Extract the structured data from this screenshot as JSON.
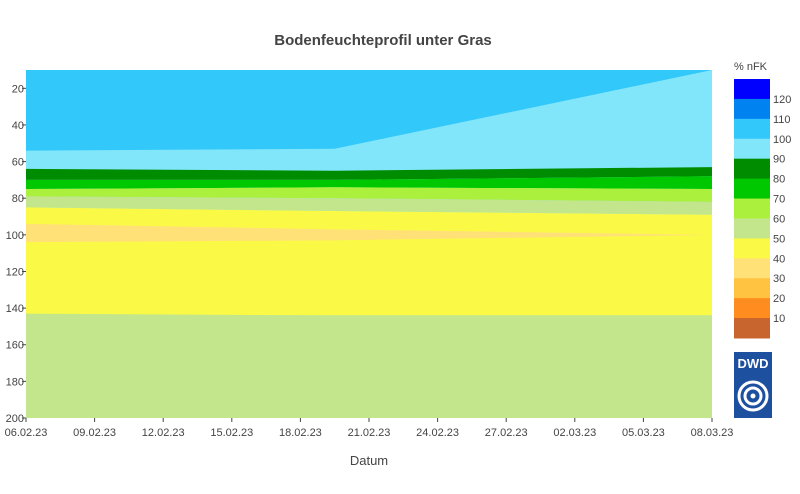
{
  "chart_data": {
    "type": "heatmap",
    "title": "Bodenfeuchteprofil unter Gras",
    "xlabel": "Datum",
    "ylabel": "",
    "x_ticks": [
      "06.02.23",
      "09.02.23",
      "12.02.23",
      "15.02.23",
      "18.02.23",
      "21.02.23",
      "24.02.23",
      "27.02.23",
      "02.03.23",
      "05.03.23",
      "08.03.23"
    ],
    "y_ticks": [
      20,
      40,
      60,
      80,
      100,
      120,
      140,
      160,
      180,
      200
    ],
    "ylim": [
      200,
      10
    ],
    "xlim_days": [
      0,
      30
    ],
    "colorbar": {
      "title": "% nFK",
      "tick_labels": [
        10,
        20,
        30,
        40,
        50,
        60,
        70,
        80,
        90,
        100,
        110,
        120
      ],
      "colors": [
        "#c8642d",
        "#ff8c1e",
        "#ffc341",
        "#ffe178",
        "#fafa46",
        "#c3e68c",
        "#aaf03c",
        "#00c800",
        "#008c00",
        "#82e6fa",
        "#32c8fa",
        "#0082f0",
        "#0000ff"
      ]
    },
    "depth_profile_days": [
      0,
      13.5,
      30
    ],
    "contour_regions": [
      {
        "level": "90-100",
        "color": "#82e6fa",
        "top": [
          10,
          10,
          10
        ],
        "bottom": [
          65,
          65,
          65
        ]
      },
      {
        "level": "100-110",
        "color": "#32c8fa",
        "top": [
          10,
          10,
          10
        ],
        "bottom": [
          54,
          53,
          10
        ]
      },
      {
        "level": "80-90",
        "color": "#008c00",
        "top": [
          64,
          65,
          63
        ],
        "bottom": [
          70,
          70,
          68
        ]
      },
      {
        "level": "70-80",
        "color": "#00c800",
        "top": [
          70,
          70,
          68
        ],
        "bottom": [
          75,
          74,
          75
        ]
      },
      {
        "level": "60-70",
        "color": "#aaf03c",
        "top": [
          75,
          74,
          75
        ],
        "bottom": [
          79,
          80,
          82
        ]
      },
      {
        "level": "50-60",
        "color": "#c3e68c",
        "top": [
          79,
          80,
          82
        ],
        "bottom": [
          85,
          87,
          89
        ]
      },
      {
        "level": "40-50",
        "color": "#fafa46",
        "top": [
          85,
          87,
          89
        ],
        "bottom": [
          144,
          144,
          144
        ]
      },
      {
        "level": "30-40",
        "color": "#ffe178",
        "top": [
          94,
          97,
          100
        ],
        "bottom": [
          104,
          103,
          100
        ]
      },
      {
        "level": "50-60",
        "color": "#c3e68c",
        "top": [
          143,
          144,
          144
        ],
        "bottom": [
          200,
          200,
          200
        ]
      }
    ]
  },
  "logo": {
    "text": "DWD"
  }
}
